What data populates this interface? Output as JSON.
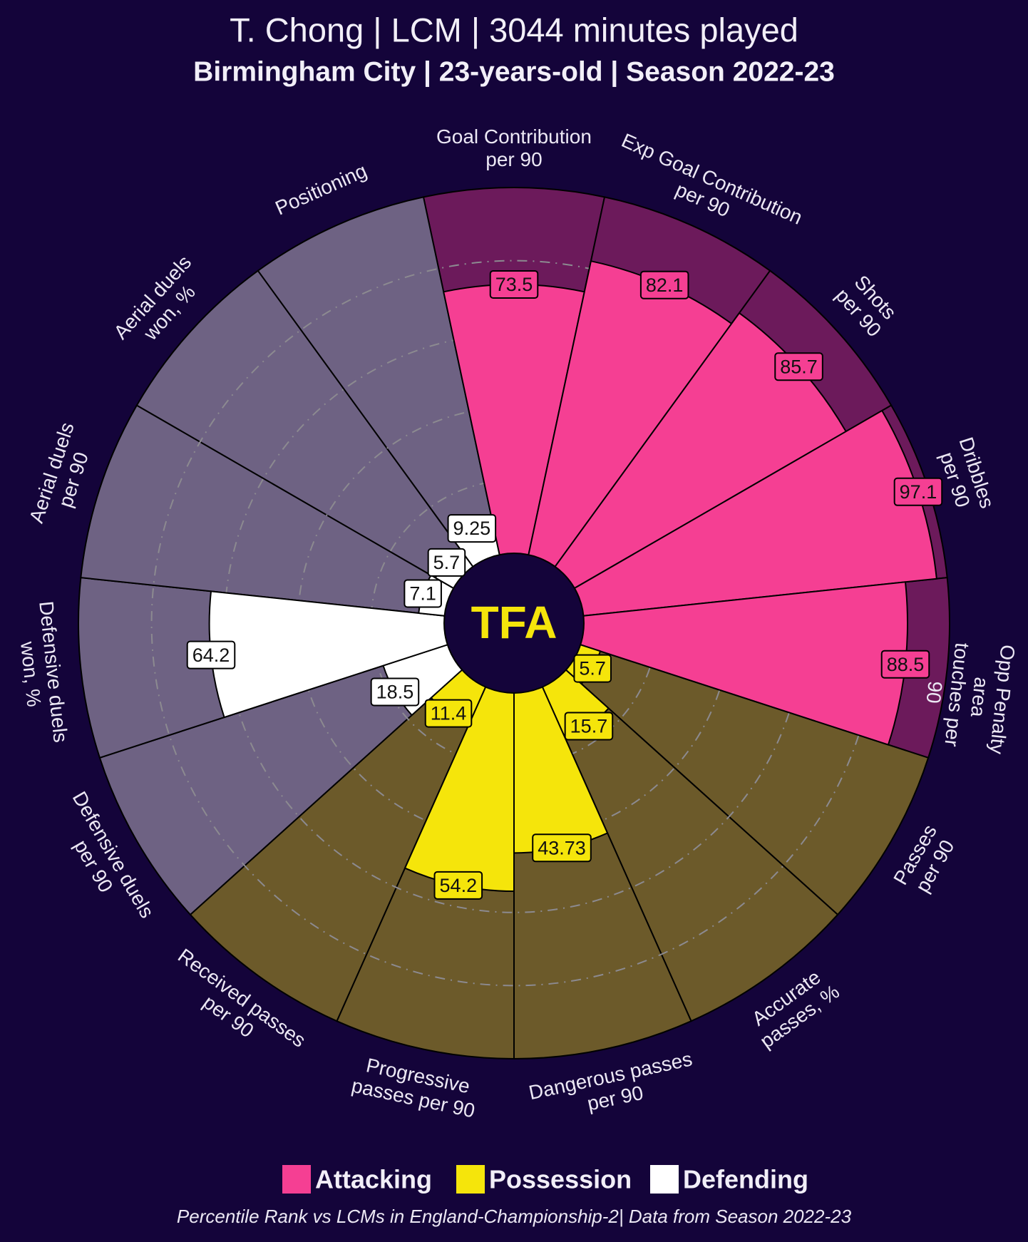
{
  "chart_data": {
    "type": "pizza",
    "title": "T. Chong | LCM | 3044 minutes played",
    "subtitle": "Birmingham City | 23-years-old | Season 2022-23",
    "logo": "TFA",
    "footnote": "Percentile Rank vs LCMs in England-Championship-2| Data from Season 2022-23",
    "categories": [
      "Goal Contribution\nper 90",
      "Exp Goal Contribution\nper 90",
      "Shots\nper 90",
      "Dribbles\nper 90",
      "Opp Penalty area\ntouches per 90",
      "Passes\nper 90",
      "Accurate\npasses, %",
      "Dangerous passes\nper 90",
      "Progressive\npasses per 90",
      "Received passes\nper 90",
      "Defensive duels\nper 90",
      "Defensive duels\nwon, %",
      "Aerial duels\nper 90",
      "Aerial duels\nwon, %",
      "Positioning"
    ],
    "rlim": [
      0,
      100
    ],
    "series": [
      {
        "name": "Attacking",
        "color": "#f53f93",
        "background": "#6c1a5b",
        "values": [
          73.5,
          82.1,
          85.7,
          97.1,
          88.5,
          null,
          null,
          null,
          null,
          null,
          null,
          null,
          null,
          null,
          null
        ]
      },
      {
        "name": "Possession",
        "color": "#f5e50b",
        "background": "#6c5a2a",
        "values": [
          null,
          null,
          null,
          null,
          null,
          5.7,
          15.7,
          43.73,
          54.2,
          11.4,
          null,
          null,
          null,
          null,
          null
        ]
      },
      {
        "name": "Defending",
        "color": "#ffffff",
        "background": "#6e6283",
        "values": [
          null,
          null,
          null,
          null,
          null,
          null,
          null,
          null,
          null,
          null,
          18.5,
          64.2,
          7.1,
          5.7,
          9.25
        ]
      }
    ]
  }
}
